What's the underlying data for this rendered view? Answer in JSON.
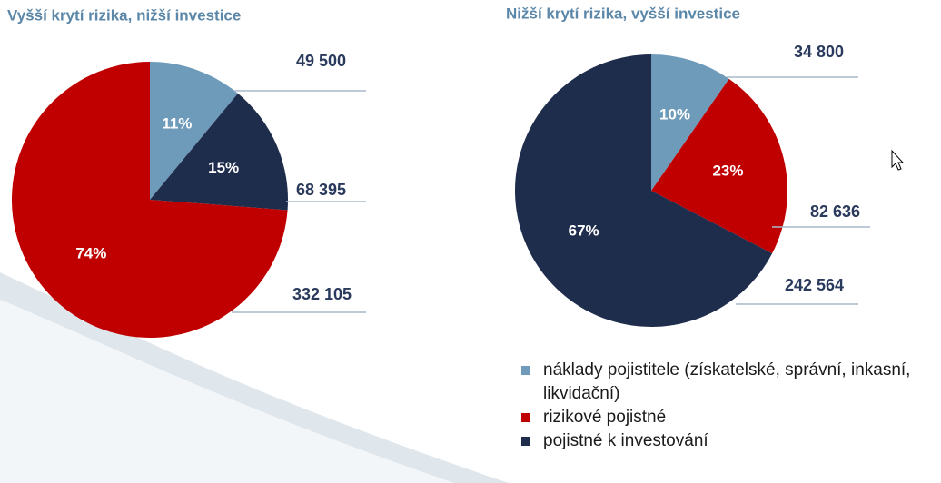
{
  "chart_data": [
    {
      "type": "pie",
      "title": "Vyšší krytí rizika, nižší investice",
      "values": [
        49500,
        68395,
        332105
      ],
      "value_labels": [
        "49 500",
        "68 395",
        "332 105"
      ],
      "percent_labels": [
        "11%",
        "15%",
        "74%"
      ],
      "colors": [
        "#6f9bbb",
        "#1f2d4d",
        "#c00000"
      ]
    },
    {
      "type": "pie",
      "title": "Nižší krytí rizika, vyšší investice",
      "values": [
        34800,
        82636,
        242564
      ],
      "value_labels": [
        "34 800",
        "82 636",
        "242 564"
      ],
      "percent_labels": [
        "10%",
        "23%",
        "67%"
      ],
      "colors": [
        "#6f9bbb",
        "#c00000",
        "#1f2d4d"
      ]
    }
  ],
  "legend": [
    {
      "label": "náklady pojistitele (získatelské, správní, inkasní, likvidační)",
      "color": "#6f9bbb"
    },
    {
      "label": "rizikové pojistné",
      "color": "#c00000"
    },
    {
      "label": "pojistné k investování",
      "color": "#1f2d4d"
    }
  ]
}
